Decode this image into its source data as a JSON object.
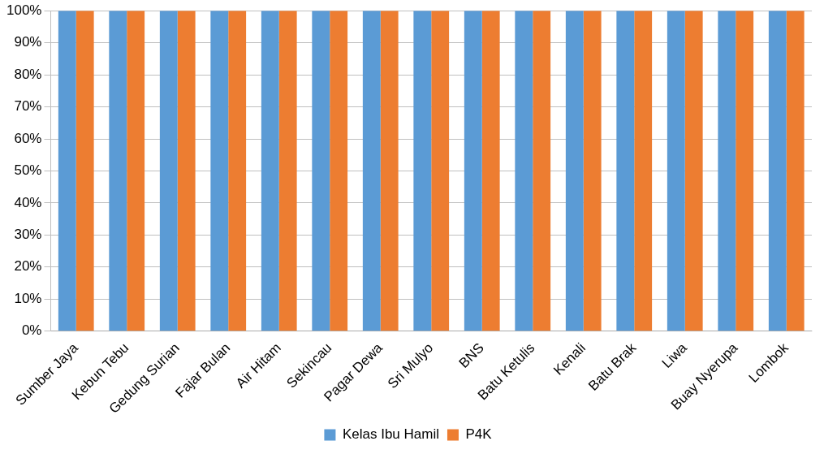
{
  "chart_data": {
    "type": "bar",
    "categories": [
      "Sumber Jaya",
      "Kebun Tebu",
      "Gedung Surian",
      "Fajar Bulan",
      "Air Hitam",
      "Sekincau",
      "Pagar Dewa",
      "Sri Mulyo",
      "BNS",
      "Batu Ketulis",
      "Kenali",
      "Batu Brak",
      "Liwa",
      "Buay Nyerupa",
      "Lombok"
    ],
    "series": [
      {
        "name": "Kelas Ibu Hamil",
        "color": "#5b9bd5",
        "values": [
          100,
          100,
          100,
          100,
          100,
          100,
          100,
          100,
          100,
          100,
          100,
          100,
          100,
          100,
          100
        ]
      },
      {
        "name": "P4K",
        "color": "#ed7d31",
        "values": [
          100,
          100,
          100,
          100,
          100,
          100,
          100,
          100,
          100,
          100,
          100,
          100,
          100,
          100,
          100
        ]
      }
    ],
    "ylim": [
      0,
      100
    ],
    "yticks": [
      {
        "value": 0,
        "label": "0%"
      },
      {
        "value": 10,
        "label": "10%"
      },
      {
        "value": 20,
        "label": "20%"
      },
      {
        "value": 30,
        "label": "30%"
      },
      {
        "value": 40,
        "label": "40%"
      },
      {
        "value": 50,
        "label": "50%"
      },
      {
        "value": 60,
        "label": "60%"
      },
      {
        "value": 70,
        "label": "70%"
      },
      {
        "value": 80,
        "label": "80%"
      },
      {
        "value": 90,
        "label": "90%"
      },
      {
        "value": 100,
        "label": "100%"
      }
    ],
    "grid": "y",
    "legend": "bottom"
  }
}
